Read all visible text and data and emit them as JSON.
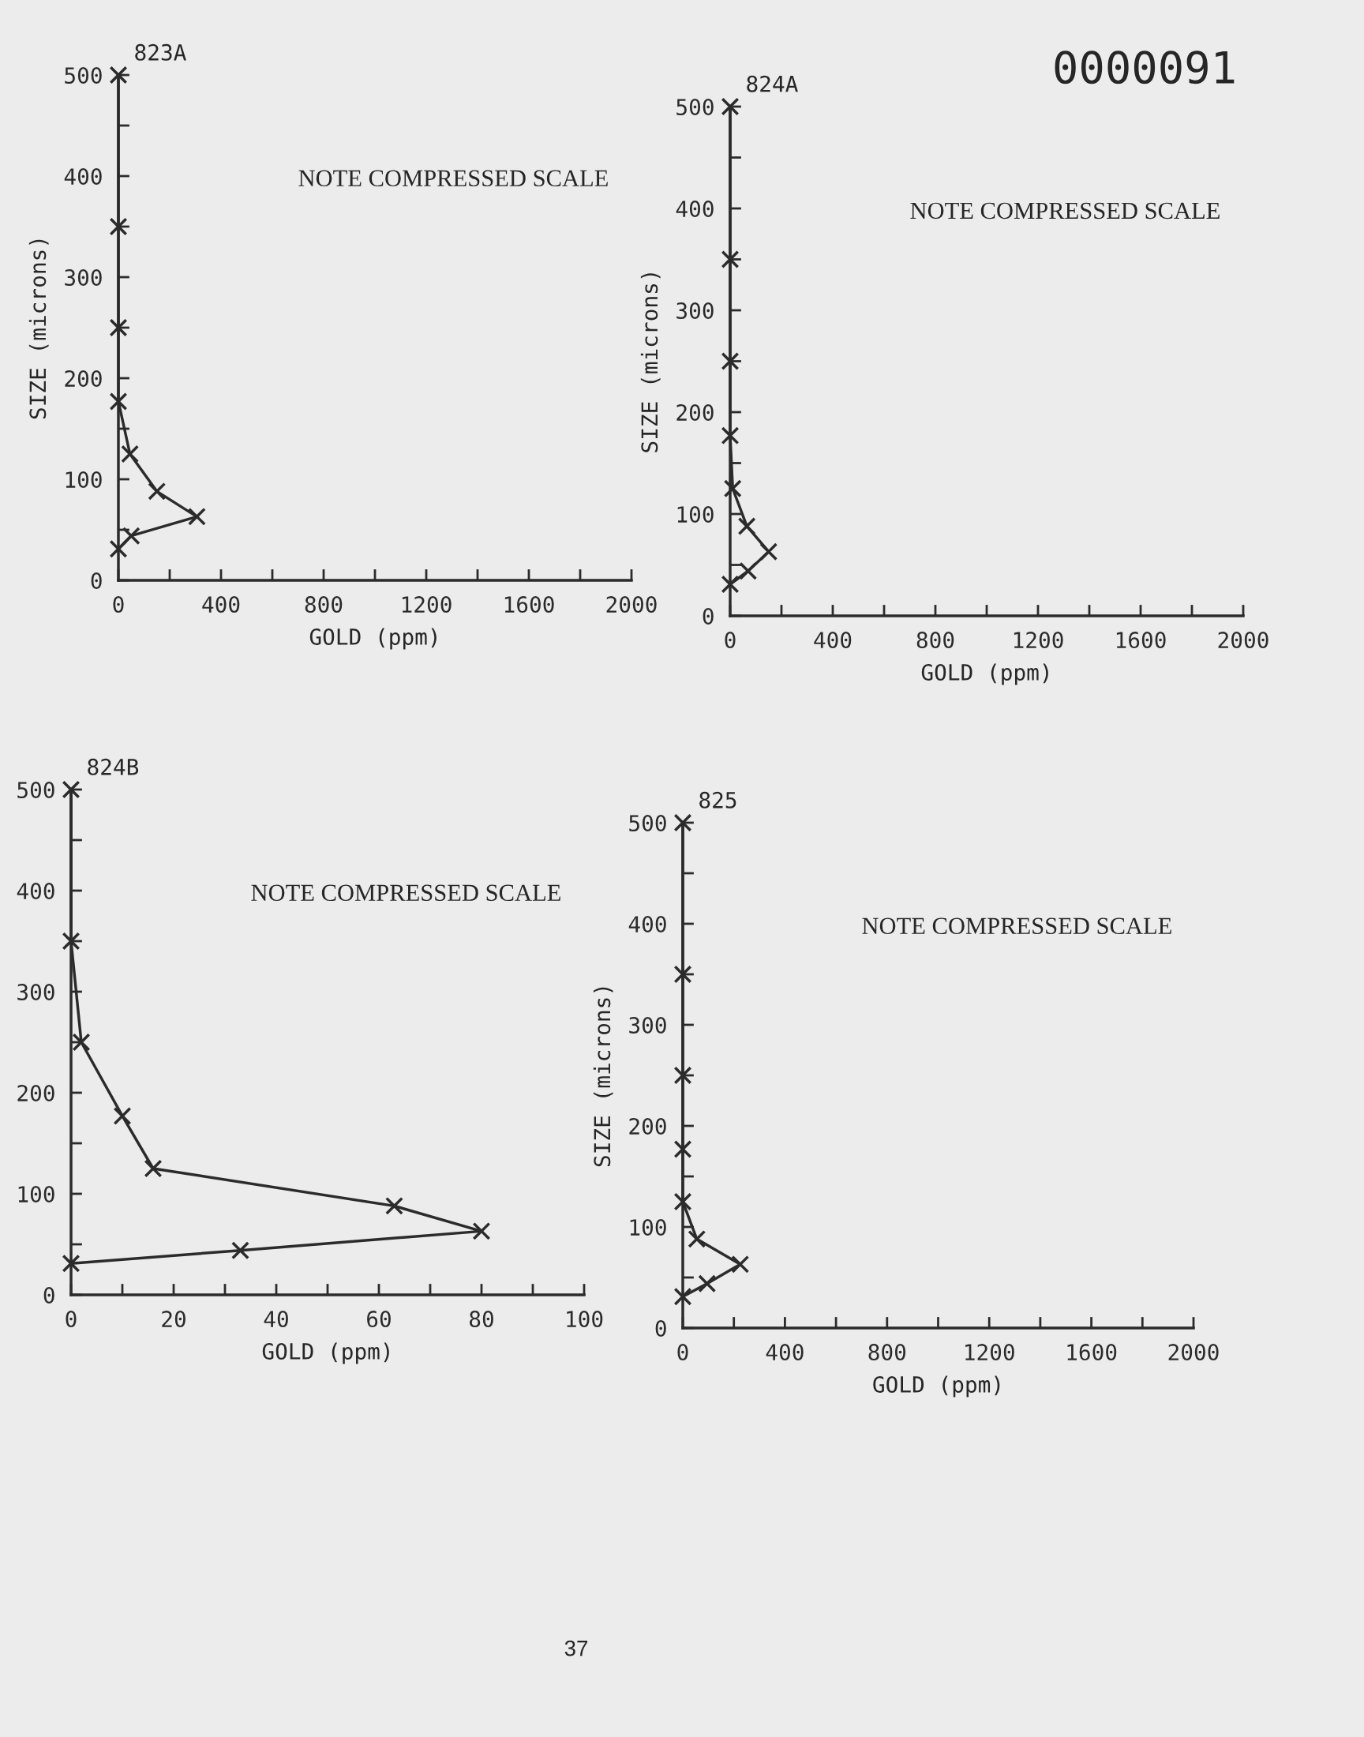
{
  "chart_data": [
    {
      "type": "line",
      "title": "823A",
      "xlabel": "GOLD (ppm)",
      "ylabel": "SIZE (microns)",
      "marker": "cross",
      "grid": false,
      "annotations": [
        "NOTE COMPRESSED SCALE"
      ],
      "series": [
        {
          "color": "#2b2b2b",
          "x": [
            0,
            0,
            0,
            0,
            45,
            150,
            306,
            50,
            0
          ],
          "values": [
            500,
            350,
            250,
            177,
            125,
            88,
            63,
            44,
            31
          ]
        }
      ],
      "xlim": [
        0,
        2000
      ],
      "ylim": [
        0,
        500
      ],
      "xticks": [
        0,
        {
          "value": 200,
          "label": null
        },
        400,
        {
          "value": 600,
          "label": null
        },
        800,
        {
          "value": 1000,
          "label": null
        },
        1200,
        {
          "value": 1400,
          "label": null
        },
        1600,
        {
          "value": 1800,
          "label": null
        },
        2000
      ],
      "yticks": [
        0,
        {
          "value": 50,
          "label": null
        },
        100,
        {
          "value": 150,
          "label": null
        },
        200,
        {
          "value": 250,
          "label": null
        },
        300,
        {
          "value": 350,
          "label": null
        },
        400,
        {
          "value": 450,
          "label": null
        },
        500
      ]
    },
    {
      "type": "line",
      "title": "824A",
      "xlabel": "GOLD (ppm)",
      "ylabel": "SIZE (microns)",
      "marker": "cross",
      "grid": false,
      "annotations": [
        "NOTE COMPRESSED SCALE",
        "0000091"
      ],
      "series": [
        {
          "color": "#2b2b2b",
          "x": [
            0,
            0,
            0,
            0,
            10,
            65,
            150,
            70,
            0
          ],
          "values": [
            500,
            350,
            250,
            177,
            125,
            88,
            63,
            44,
            31
          ]
        }
      ],
      "xlim": [
        0,
        2000
      ],
      "ylim": [
        0,
        500
      ],
      "xticks": [
        0,
        {
          "value": 200,
          "label": null
        },
        400,
        {
          "value": 600,
          "label": null
        },
        800,
        {
          "value": 1000,
          "label": null
        },
        1200,
        {
          "value": 1400,
          "label": null
        },
        1600,
        {
          "value": 1800,
          "label": null
        },
        2000
      ],
      "yticks": [
        0,
        {
          "value": 50,
          "label": null
        },
        100,
        {
          "value": 150,
          "label": null
        },
        200,
        {
          "value": 250,
          "label": null
        },
        300,
        {
          "value": 350,
          "label": null
        },
        400,
        {
          "value": 450,
          "label": null
        },
        500
      ]
    },
    {
      "type": "line",
      "title": "824B",
      "xlabel": "GOLD (ppm)",
      "marker": "cross",
      "grid": false,
      "annotations": [
        "NOTE COMPRESSED SCALE"
      ],
      "series": [
        {
          "color": "#2b2b2b",
          "x": [
            0,
            0,
            2,
            10,
            16,
            63,
            80,
            33,
            0
          ],
          "values": [
            500,
            350,
            250,
            177,
            125,
            88,
            63,
            44,
            31
          ]
        }
      ],
      "xlim": [
        0,
        100
      ],
      "ylim": [
        0,
        500
      ],
      "xticks": [
        0,
        {
          "value": 10,
          "label": null
        },
        20,
        {
          "value": 30,
          "label": null
        },
        40,
        {
          "value": 50,
          "label": null
        },
        60,
        {
          "value": 70,
          "label": null
        },
        80,
        {
          "value": 90,
          "label": null
        },
        100
      ],
      "yticks": [
        0,
        {
          "value": 50,
          "label": null
        },
        100,
        {
          "value": 150,
          "label": null
        },
        200,
        {
          "value": 250,
          "label": null
        },
        300,
        {
          "value": 350,
          "label": null
        },
        400,
        {
          "value": 450,
          "label": null
        },
        500
      ]
    },
    {
      "type": "line",
      "title": "825",
      "xlabel": "GOLD (ppm)",
      "ylabel": "SIZE (microns)",
      "marker": "cross",
      "grid": false,
      "annotations": [
        "NOTE COMPRESSED SCALE",
        "37"
      ],
      "series": [
        {
          "color": "#2b2b2b",
          "x": [
            0,
            0,
            0,
            0,
            0,
            55,
            225,
            95,
            0
          ],
          "values": [
            500,
            350,
            250,
            177,
            125,
            88,
            63,
            44,
            31
          ]
        }
      ],
      "xlim": [
        0,
        2000
      ],
      "ylim": [
        0,
        500
      ],
      "xticks": [
        0,
        {
          "value": 200,
          "label": null
        },
        400,
        {
          "value": 600,
          "label": null
        },
        800,
        {
          "value": 1000,
          "label": null
        },
        1200,
        {
          "value": 1400,
          "label": null
        },
        1600,
        {
          "value": 1800,
          "label": null
        },
        2000
      ],
      "yticks": [
        0,
        {
          "value": 50,
          "label": null
        },
        100,
        {
          "value": 150,
          "label": null
        },
        200,
        {
          "value": 250,
          "label": null
        },
        300,
        {
          "value": 350,
          "label": null
        },
        400,
        {
          "value": 450,
          "label": null
        },
        500
      ]
    }
  ]
}
